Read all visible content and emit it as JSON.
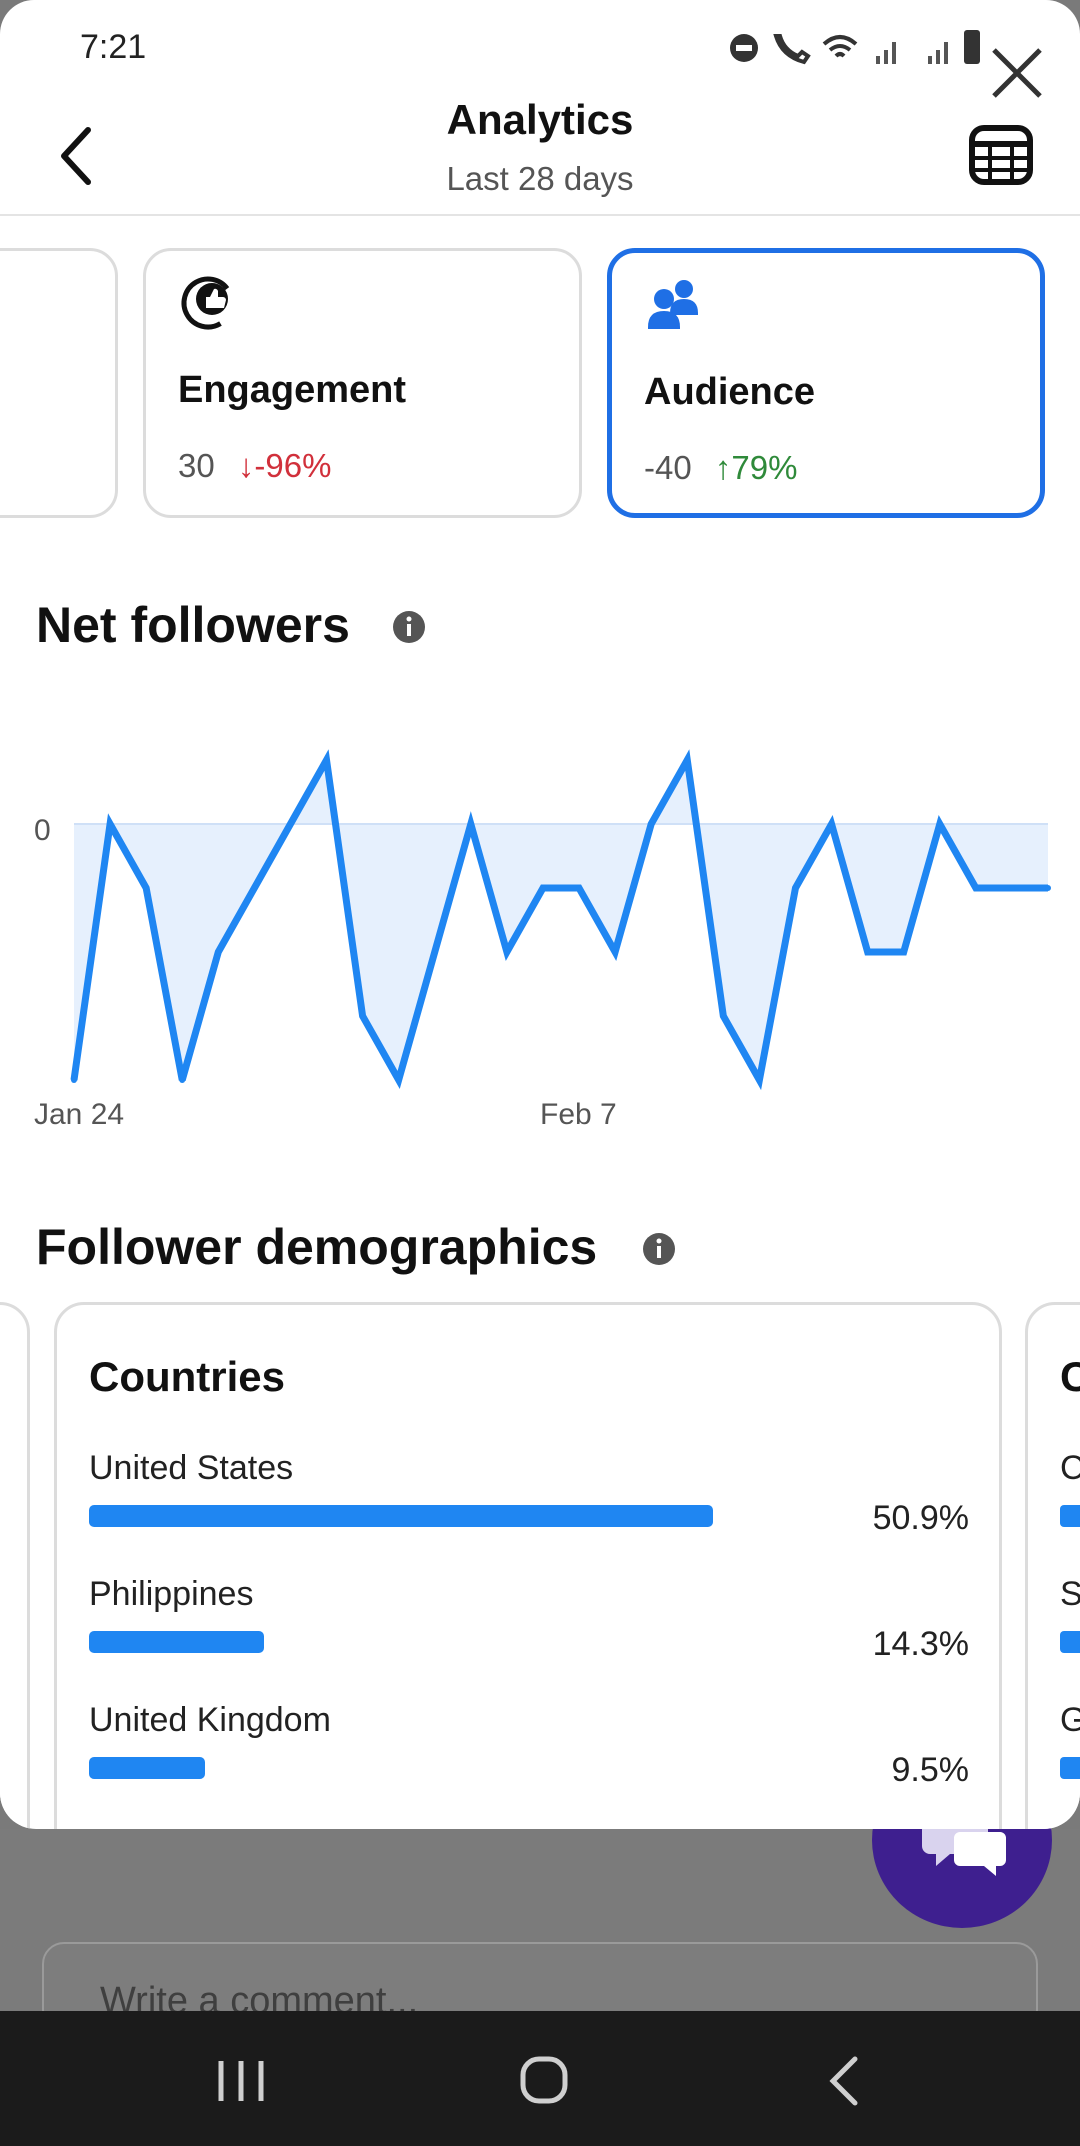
{
  "status_bar": {
    "time": "7:21"
  },
  "header": {
    "title": "Analytics",
    "subtitle": "Last 28 days"
  },
  "metric_cards": [
    {
      "label": "Engagement",
      "value": "30",
      "change": "-96%",
      "trend": "down",
      "icon": "engagement-icon"
    },
    {
      "label": "Audience",
      "value": "-40",
      "change": "79%",
      "trend": "up",
      "icon": "audience-icon",
      "selected": true
    }
  ],
  "net_followers": {
    "title": "Net followers",
    "chart_data": {
      "type": "area",
      "title": "Net followers",
      "x_tick_labels": [
        "Jan 24",
        "Feb 7"
      ],
      "y_tick_labels": [
        "0"
      ],
      "values": [
        -4,
        0,
        -1,
        -4,
        -2,
        -1,
        0,
        1,
        -3,
        -4,
        -2,
        0,
        -2,
        -1,
        -1,
        -2,
        0,
        1,
        -3,
        -4,
        -1,
        0,
        -2,
        -2,
        0,
        -1,
        -1,
        -1
      ],
      "zero_line": 0,
      "ylim": [
        -4,
        1
      ],
      "grid": false
    }
  },
  "demographics": {
    "title": "Follower demographics",
    "countries": {
      "title": "Countries",
      "rows": [
        {
          "name": "United States",
          "pct_label": "50.9%",
          "value": 50.9
        },
        {
          "name": "Philippines",
          "pct_label": "14.3%",
          "value": 14.3
        },
        {
          "name": "United Kingdom",
          "pct_label": "9.5%",
          "value": 9.5
        }
      ]
    },
    "next_card_peek": {
      "title_letter": "C",
      "row_letters": [
        "C",
        "S",
        "G"
      ]
    }
  },
  "comment": {
    "placeholder": "Write a comment..."
  }
}
